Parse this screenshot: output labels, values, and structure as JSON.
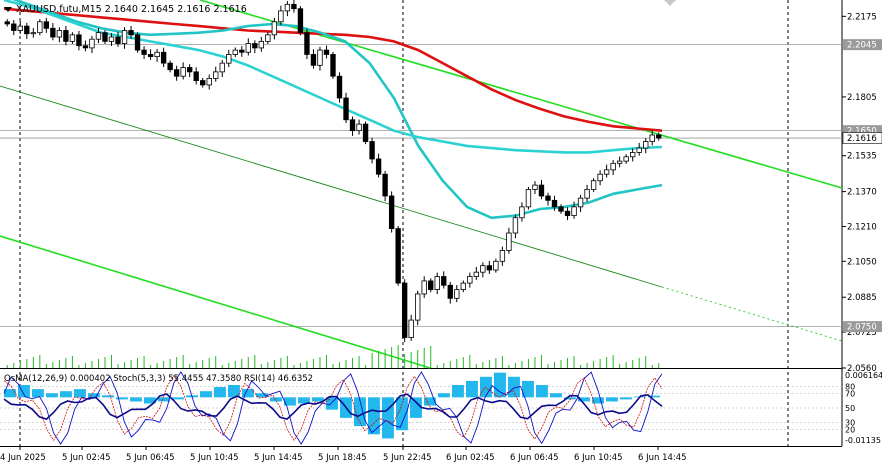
{
  "header": {
    "symbol_line": "XAUUSD.futu,M15  2.1640 2.1645 2.1616 2.1616"
  },
  "price_axis": {
    "ticks": [
      "2.2175",
      "2.2045",
      "2.1805",
      "2.1650",
      "2.1616",
      "2.1535",
      "2.1370",
      "2.1210",
      "2.1050",
      "2.0885",
      "2.0750",
      "2.0725",
      "2.0560"
    ],
    "labels": [
      {
        "value": 2.2175,
        "text": "2.2175"
      },
      {
        "value": 2.1805,
        "text": "2.1805"
      },
      {
        "value": 2.1535,
        "text": "2.1535"
      },
      {
        "value": 2.137,
        "text": "2.1370"
      },
      {
        "value": 2.121,
        "text": "2.1210"
      },
      {
        "value": 2.105,
        "text": "2.1050"
      },
      {
        "value": 2.0885,
        "text": "2.0885"
      },
      {
        "value": 2.0725,
        "text": "2.0725"
      },
      {
        "value": 2.056,
        "text": "2.0560"
      }
    ],
    "boxes": [
      {
        "value": 2.2045,
        "text": "2.2045",
        "kind": "level"
      },
      {
        "value": 2.165,
        "text": "2.1650",
        "kind": "level"
      },
      {
        "value": 2.1616,
        "text": "2.1616",
        "kind": "bid"
      },
      {
        "value": 2.075,
        "text": "2.0750",
        "kind": "level"
      }
    ]
  },
  "time_axis": {
    "labels": [
      "4 Jun 2025",
      "5 Jun 02:45",
      "5 Jun 06:45",
      "5 Jun 10:45",
      "5 Jun 14:45",
      "5 Jun 18:45",
      "5 Jun 22:45",
      "6 Jun 02:45",
      "6 Jun 06:45",
      "6 Jun 10:45",
      "6 Jun 14:45"
    ]
  },
  "sub_window": {
    "indicator_label": "OsMA(12,26,9) 0.000402  Stoch(5,3,3) 55.4455 47.3580  RSI(14) 46.6352",
    "axis_labels": [
      {
        "text": "0.006164",
        "value": 0.006164
      },
      {
        "text": "80",
        "value": 80
      },
      {
        "text": "70",
        "value": 70
      },
      {
        "text": "50",
        "value": 50
      },
      {
        "text": "30",
        "value": 30
      },
      {
        "text": "20",
        "value": 20
      },
      {
        "text": "-0.01135",
        "value": -0.01135
      }
    ]
  },
  "chart_data": {
    "type": "candlestick",
    "timeframe": "M15",
    "symbol": "XAUUSD.futu",
    "last_ohlc": {
      "open": 2.164,
      "high": 2.1645,
      "low": 2.1616,
      "close": 2.1616
    },
    "price_range": [
      2.056,
      2.225
    ],
    "horizontal_levels": [
      2.2045,
      2.165,
      2.1616,
      2.075
    ],
    "closes": [
      2.214,
      2.211,
      2.213,
      2.2095,
      2.21,
      2.215,
      2.212,
      2.208,
      2.211,
      2.206,
      2.209,
      2.204,
      2.203,
      2.207,
      2.21,
      2.206,
      2.208,
      2.205,
      2.211,
      2.209,
      2.202,
      2.2,
      2.199,
      2.201,
      2.196,
      2.193,
      2.19,
      2.194,
      2.192,
      2.188,
      2.186,
      2.189,
      2.192,
      2.196,
      2.2,
      2.202,
      2.201,
      2.205,
      2.203,
      2.206,
      2.209,
      2.215,
      2.22,
      2.223,
      2.221,
      2.21,
      2.2,
      2.195,
      2.202,
      2.2,
      2.19,
      2.18,
      2.17,
      2.165,
      2.168,
      2.16,
      2.152,
      2.145,
      2.135,
      2.12,
      2.095,
      2.07,
      2.078,
      2.09,
      2.096,
      2.092,
      2.098,
      2.094,
      2.088,
      2.092,
      2.095,
      2.098,
      2.1,
      2.103,
      2.101,
      2.105,
      2.11,
      2.118,
      2.125,
      2.13,
      2.138,
      2.14,
      2.135,
      2.133,
      2.13,
      2.128,
      2.126,
      2.13,
      2.134,
      2.138,
      2.142,
      2.145,
      2.147,
      2.15,
      2.151,
      2.153,
      2.155,
      2.157,
      2.16,
      2.163,
      2.1616
    ],
    "moving_averages": [
      {
        "color": "#dd1111",
        "values": [
          2.221,
          2.22,
          2.219,
          2.218,
          2.217,
          2.216,
          2.215,
          2.214,
          2.213,
          2.212,
          2.211,
          2.2105,
          2.21,
          2.2095,
          2.209,
          2.208,
          2.206,
          2.202,
          2.196,
          2.19,
          2.184,
          2.179,
          2.175,
          2.1715,
          2.169,
          2.167,
          2.166,
          2.165
        ]
      },
      {
        "color": "#22c4c4",
        "values": [
          2.227,
          2.223,
          2.219,
          2.215,
          2.212,
          2.21,
          2.209,
          2.2095,
          2.21,
          2.211,
          2.213,
          2.214,
          2.213,
          2.21,
          2.206,
          2.196,
          2.18,
          2.158,
          2.142,
          2.13,
          2.125,
          2.126,
          2.129,
          2.13,
          2.132,
          2.136,
          2.138,
          2.14
        ]
      },
      {
        "color": "#2cd2d2",
        "values": [
          2.225,
          2.222,
          2.218,
          2.214,
          2.21,
          2.208,
          2.206,
          2.204,
          2.202,
          2.199,
          2.195,
          2.19,
          2.185,
          2.18,
          2.175,
          2.17,
          2.165,
          2.162,
          2.16,
          2.158,
          2.157,
          2.156,
          2.1555,
          2.155,
          2.155,
          2.156,
          2.157,
          2.1575
        ]
      }
    ],
    "osma_values": [
      0.002,
      0.003,
      0.002,
      0.001,
      0.0015,
      0.002,
      0.001,
      0.0005,
      -0.0005,
      -0.001,
      -0.0015,
      -0.001,
      -0.0005,
      0.0005,
      0.0015,
      0.0025,
      0.003,
      0.002,
      0.001,
      -0.001,
      -0.002,
      -0.0015,
      -0.001,
      -0.003,
      -0.005,
      -0.007,
      -0.009,
      -0.01,
      -0.008,
      -0.005,
      -0.002,
      0.001,
      0.003,
      0.004,
      0.005,
      0.006,
      0.005,
      0.004,
      0.003,
      0.001,
      -0.0005,
      -0.001,
      -0.0015,
      -0.001,
      -0.0005,
      0.0002,
      0.0004
    ]
  }
}
